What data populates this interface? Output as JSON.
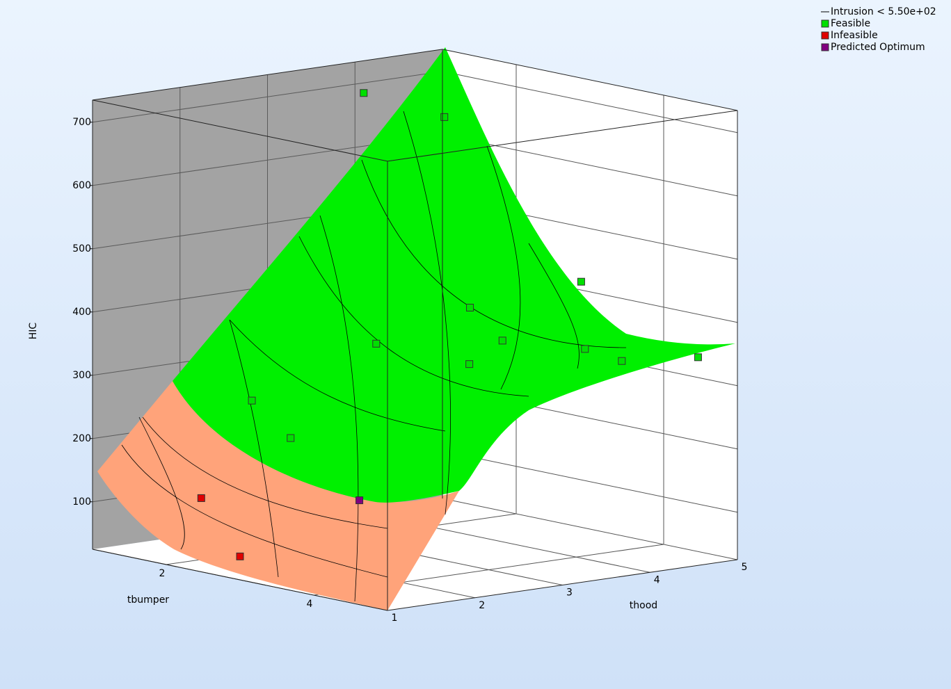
{
  "chart_data": {
    "type": "scatter3d",
    "xlabel": "tbumper",
    "ylabel": "thood",
    "zlabel": "HIC",
    "xlim": [
      1,
      5
    ],
    "ylim": [
      1,
      5
    ],
    "zlim": [
      25,
      735
    ],
    "xticks": [
      2,
      4
    ],
    "yticks": [
      1,
      2,
      3,
      4,
      5
    ],
    "zticks": [
      100,
      200,
      300,
      400,
      500,
      600,
      700
    ],
    "grid": true,
    "legend": "top-right",
    "constraint_label": "Intrusion < 5.50e+02",
    "series": [
      {
        "name": "Feasible",
        "color": "#00e000",
        "x": [
          1,
          1.5,
          3,
          2.5,
          2,
          3,
          4,
          3.5,
          4.5,
          5,
          1.5,
          2.5
        ],
        "y": [
          4.1,
          4.6,
          4.9,
          4.05,
          3.4,
          4,
          4.1,
          3.2,
          4.1,
          4.55,
          2.4,
          2
        ],
        "z": [
          684,
          648,
          418,
          382,
          326,
          343,
          352,
          334,
          345,
          354,
          244,
          217
        ]
      },
      {
        "name": "Infeasible",
        "color": "#e00000",
        "x": [
          2,
          3
        ],
        "y": [
          1.4,
          1
        ],
        "z": [
          122,
          62
        ]
      },
      {
        "name": "Predicted Optimum",
        "color": "#800080",
        "x": [
          4.5
        ],
        "y": [
          1.1
        ],
        "z": [
          185
        ]
      }
    ]
  }
}
